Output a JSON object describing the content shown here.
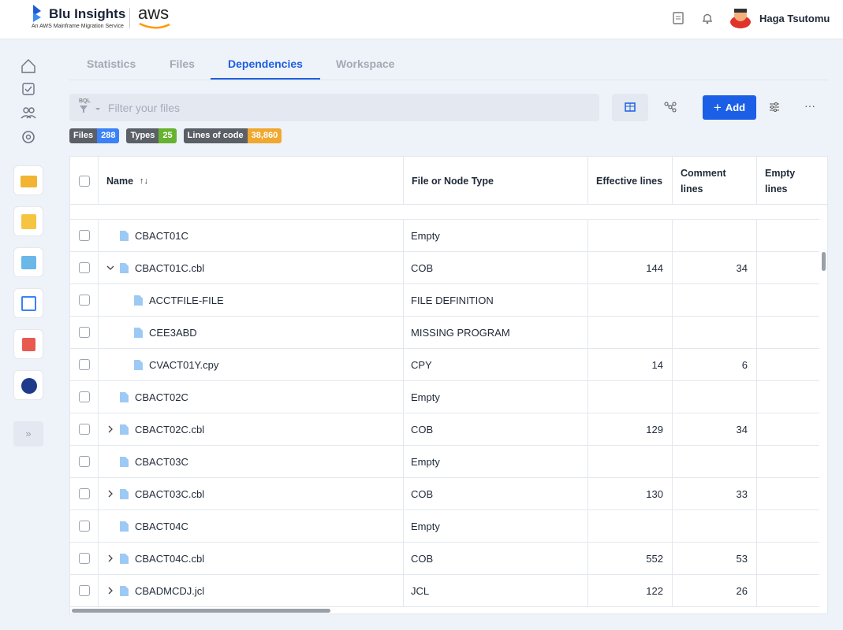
{
  "header": {
    "brand": "Blu Insights",
    "tagline": "An AWS Mainframe Migration Service",
    "partner": "aws",
    "user": "Haga Tsutomu"
  },
  "tabs": [
    "Statistics",
    "Files",
    "Dependencies",
    "Workspace"
  ],
  "active_tab": 2,
  "filter": {
    "badge": "BQL",
    "placeholder": "Filter your files"
  },
  "add_button": "Add",
  "stats": [
    {
      "label": "Files",
      "value": "288",
      "color": "#3b82f6"
    },
    {
      "label": "Types",
      "value": "25",
      "color": "#65b32e"
    },
    {
      "label": "Lines of code",
      "value": "38,860",
      "color": "#f0a830"
    }
  ],
  "table": {
    "columns": [
      "Name",
      "File or Node Type",
      "Effective lines",
      "Comment lines",
      "Empty lines"
    ],
    "rows": [
      {
        "name": "CBACT01C",
        "level": 1,
        "expander": "none",
        "type": "Empty",
        "effective": null,
        "comment": null
      },
      {
        "name": "CBACT01C.cbl",
        "level": 1,
        "expander": "expanded",
        "type": "COB",
        "effective": "144",
        "comment": "34"
      },
      {
        "name": "ACCTFILE-FILE",
        "level": 2,
        "expander": "none",
        "type": "FILE DEFINITION",
        "effective": null,
        "comment": null
      },
      {
        "name": "CEE3ABD",
        "level": 2,
        "expander": "none",
        "type": "MISSING PROGRAM",
        "effective": null,
        "comment": null
      },
      {
        "name": "CVACT01Y.cpy",
        "level": 2,
        "expander": "none",
        "type": "CPY",
        "effective": "14",
        "comment": "6"
      },
      {
        "name": "CBACT02C",
        "level": 1,
        "expander": "none",
        "type": "Empty",
        "effective": null,
        "comment": null
      },
      {
        "name": "CBACT02C.cbl",
        "level": 1,
        "expander": "collapsed",
        "type": "COB",
        "effective": "129",
        "comment": "34"
      },
      {
        "name": "CBACT03C",
        "level": 1,
        "expander": "none",
        "type": "Empty",
        "effective": null,
        "comment": null
      },
      {
        "name": "CBACT03C.cbl",
        "level": 1,
        "expander": "collapsed",
        "type": "COB",
        "effective": "130",
        "comment": "33"
      },
      {
        "name": "CBACT04C",
        "level": 1,
        "expander": "none",
        "type": "Empty",
        "effective": null,
        "comment": null
      },
      {
        "name": "CBACT04C.cbl",
        "level": 1,
        "expander": "collapsed",
        "type": "COB",
        "effective": "552",
        "comment": "53"
      },
      {
        "name": "CBADMCDJ.jcl",
        "level": 1,
        "expander": "collapsed",
        "type": "JCL",
        "effective": "122",
        "comment": "26"
      }
    ]
  }
}
